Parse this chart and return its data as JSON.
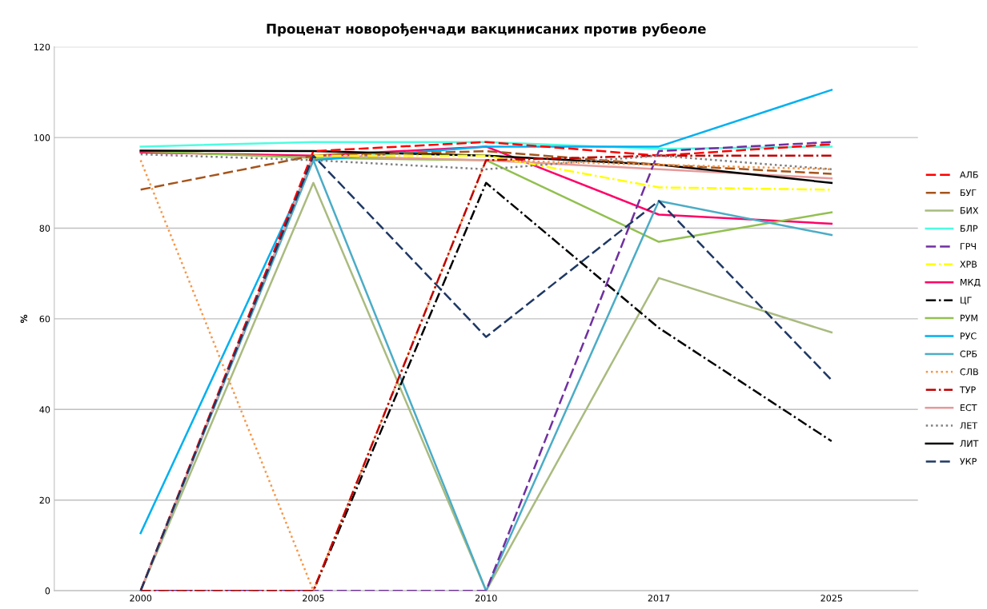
{
  "chart_data": {
    "type": "line",
    "title": "Проценат новорођенчади вакцинисаних против рубеоле",
    "ylabel": "%",
    "categories": [
      "2000",
      "2005",
      "2010",
      "2017",
      "2025"
    ],
    "ylim": [
      0,
      120
    ],
    "yticks": [
      0,
      20,
      40,
      60,
      80,
      100,
      120
    ],
    "grid": "y",
    "legend": "right",
    "series": [
      {
        "name": "АЛБ",
        "color": "#ff0000",
        "line_style": "dashed",
        "values": [
          0,
          97,
          99,
          96,
          98.5
        ]
      },
      {
        "name": "БУГ",
        "color": "#a5541c",
        "line_style": "dashed",
        "values": [
          88.5,
          96,
          97,
          94,
          92
        ]
      },
      {
        "name": "БИХ",
        "color": "#a9bb7f",
        "line_style": "solid",
        "values": [
          0,
          90,
          0,
          69,
          57
        ]
      },
      {
        "name": "БЛР",
        "color": "#4dfde0",
        "line_style": "solid",
        "values": [
          98,
          99,
          99,
          97.5,
          98
        ]
      },
      {
        "name": "ГРЧ",
        "color": "#7030a0",
        "line_style": "dashed",
        "values": [
          0,
          0,
          0,
          97,
          99
        ]
      },
      {
        "name": "ХРВ",
        "color": "#ffff00",
        "line_style": "dashdot",
        "values": [
          null,
          96,
          96,
          89,
          88.5
        ]
      },
      {
        "name": "МКД",
        "color": "#ff0066",
        "line_style": "solid",
        "values": [
          96.7,
          96,
          98,
          83,
          81
        ]
      },
      {
        "name": "ЦГ",
        "color": "#000000",
        "line_style": "dashdot",
        "values": [
          0,
          0,
          90,
          58,
          33
        ]
      },
      {
        "name": "РУМ",
        "color": "#92c050",
        "line_style": "solid",
        "values": [
          97,
          95.5,
          95,
          77,
          83.5
        ]
      },
      {
        "name": "РУС",
        "color": "#00b0f0",
        "line_style": "solid",
        "values": [
          12.7,
          95,
          98,
          98,
          110.5
        ]
      },
      {
        "name": "СРБ",
        "color": "#4bacc6",
        "line_style": "solid",
        "values": [
          0,
          95,
          0,
          86,
          78.5
        ]
      },
      {
        "name": "СЛВ",
        "color": "#f79646",
        "line_style": "dotted",
        "values": [
          95,
          0,
          95,
          94,
          93
        ]
      },
      {
        "name": "ТУР",
        "color": "#c00000",
        "line_style": "dashdot",
        "values": [
          0,
          0,
          95,
          96,
          96
        ]
      },
      {
        "name": "ЕСТ",
        "color": "#e6999a",
        "line_style": "solid",
        "values": [
          0,
          96,
          95,
          93,
          91
        ]
      },
      {
        "name": "ЛЕТ",
        "color": "#808080",
        "line_style": "dotted",
        "values": [
          96.3,
          95,
          93,
          96,
          93
        ]
      },
      {
        "name": "ЛИТ",
        "color": "#000000",
        "line_style": "solid",
        "values": [
          97.1,
          97,
          96,
          94,
          90
        ]
      },
      {
        "name": "УКР",
        "color": "#1f3864",
        "line_style": "dashed",
        "values": [
          0,
          96,
          56,
          86,
          46.5
        ]
      }
    ]
  }
}
